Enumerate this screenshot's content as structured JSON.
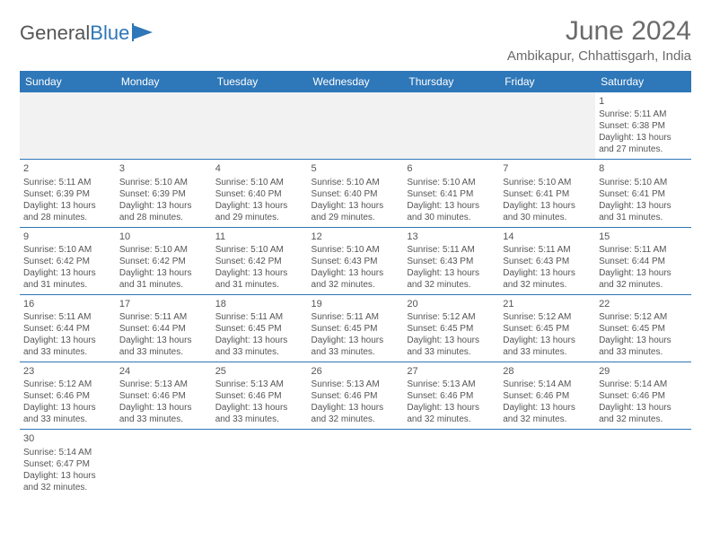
{
  "brand": {
    "first": "General",
    "second": "Blue"
  },
  "title": "June 2024",
  "location": "Ambikapur, Chhattisgarh, India",
  "colors": {
    "header_bg": "#2e77b8",
    "header_text": "#ffffff",
    "border": "#2e77b8",
    "text": "#555555",
    "empty_bg": "#f2f2f2",
    "page_bg": "#ffffff"
  },
  "weekdays": [
    "Sunday",
    "Monday",
    "Tuesday",
    "Wednesday",
    "Thursday",
    "Friday",
    "Saturday"
  ],
  "first_weekday_index": 6,
  "days": [
    {
      "n": 1,
      "sunrise": "5:11 AM",
      "sunset": "6:38 PM",
      "dl": "13 hours and 27 minutes."
    },
    {
      "n": 2,
      "sunrise": "5:11 AM",
      "sunset": "6:39 PM",
      "dl": "13 hours and 28 minutes."
    },
    {
      "n": 3,
      "sunrise": "5:10 AM",
      "sunset": "6:39 PM",
      "dl": "13 hours and 28 minutes."
    },
    {
      "n": 4,
      "sunrise": "5:10 AM",
      "sunset": "6:40 PM",
      "dl": "13 hours and 29 minutes."
    },
    {
      "n": 5,
      "sunrise": "5:10 AM",
      "sunset": "6:40 PM",
      "dl": "13 hours and 29 minutes."
    },
    {
      "n": 6,
      "sunrise": "5:10 AM",
      "sunset": "6:41 PM",
      "dl": "13 hours and 30 minutes."
    },
    {
      "n": 7,
      "sunrise": "5:10 AM",
      "sunset": "6:41 PM",
      "dl": "13 hours and 30 minutes."
    },
    {
      "n": 8,
      "sunrise": "5:10 AM",
      "sunset": "6:41 PM",
      "dl": "13 hours and 31 minutes."
    },
    {
      "n": 9,
      "sunrise": "5:10 AM",
      "sunset": "6:42 PM",
      "dl": "13 hours and 31 minutes."
    },
    {
      "n": 10,
      "sunrise": "5:10 AM",
      "sunset": "6:42 PM",
      "dl": "13 hours and 31 minutes."
    },
    {
      "n": 11,
      "sunrise": "5:10 AM",
      "sunset": "6:42 PM",
      "dl": "13 hours and 31 minutes."
    },
    {
      "n": 12,
      "sunrise": "5:10 AM",
      "sunset": "6:43 PM",
      "dl": "13 hours and 32 minutes."
    },
    {
      "n": 13,
      "sunrise": "5:11 AM",
      "sunset": "6:43 PM",
      "dl": "13 hours and 32 minutes."
    },
    {
      "n": 14,
      "sunrise": "5:11 AM",
      "sunset": "6:43 PM",
      "dl": "13 hours and 32 minutes."
    },
    {
      "n": 15,
      "sunrise": "5:11 AM",
      "sunset": "6:44 PM",
      "dl": "13 hours and 32 minutes."
    },
    {
      "n": 16,
      "sunrise": "5:11 AM",
      "sunset": "6:44 PM",
      "dl": "13 hours and 33 minutes."
    },
    {
      "n": 17,
      "sunrise": "5:11 AM",
      "sunset": "6:44 PM",
      "dl": "13 hours and 33 minutes."
    },
    {
      "n": 18,
      "sunrise": "5:11 AM",
      "sunset": "6:45 PM",
      "dl": "13 hours and 33 minutes."
    },
    {
      "n": 19,
      "sunrise": "5:11 AM",
      "sunset": "6:45 PM",
      "dl": "13 hours and 33 minutes."
    },
    {
      "n": 20,
      "sunrise": "5:12 AM",
      "sunset": "6:45 PM",
      "dl": "13 hours and 33 minutes."
    },
    {
      "n": 21,
      "sunrise": "5:12 AM",
      "sunset": "6:45 PM",
      "dl": "13 hours and 33 minutes."
    },
    {
      "n": 22,
      "sunrise": "5:12 AM",
      "sunset": "6:45 PM",
      "dl": "13 hours and 33 minutes."
    },
    {
      "n": 23,
      "sunrise": "5:12 AM",
      "sunset": "6:46 PM",
      "dl": "13 hours and 33 minutes."
    },
    {
      "n": 24,
      "sunrise": "5:13 AM",
      "sunset": "6:46 PM",
      "dl": "13 hours and 33 minutes."
    },
    {
      "n": 25,
      "sunrise": "5:13 AM",
      "sunset": "6:46 PM",
      "dl": "13 hours and 33 minutes."
    },
    {
      "n": 26,
      "sunrise": "5:13 AM",
      "sunset": "6:46 PM",
      "dl": "13 hours and 32 minutes."
    },
    {
      "n": 27,
      "sunrise": "5:13 AM",
      "sunset": "6:46 PM",
      "dl": "13 hours and 32 minutes."
    },
    {
      "n": 28,
      "sunrise": "5:14 AM",
      "sunset": "6:46 PM",
      "dl": "13 hours and 32 minutes."
    },
    {
      "n": 29,
      "sunrise": "5:14 AM",
      "sunset": "6:46 PM",
      "dl": "13 hours and 32 minutes."
    },
    {
      "n": 30,
      "sunrise": "5:14 AM",
      "sunset": "6:47 PM",
      "dl": "13 hours and 32 minutes."
    }
  ],
  "labels": {
    "sunrise_prefix": "Sunrise: ",
    "sunset_prefix": "Sunset: ",
    "daylight_prefix": "Daylight: "
  }
}
